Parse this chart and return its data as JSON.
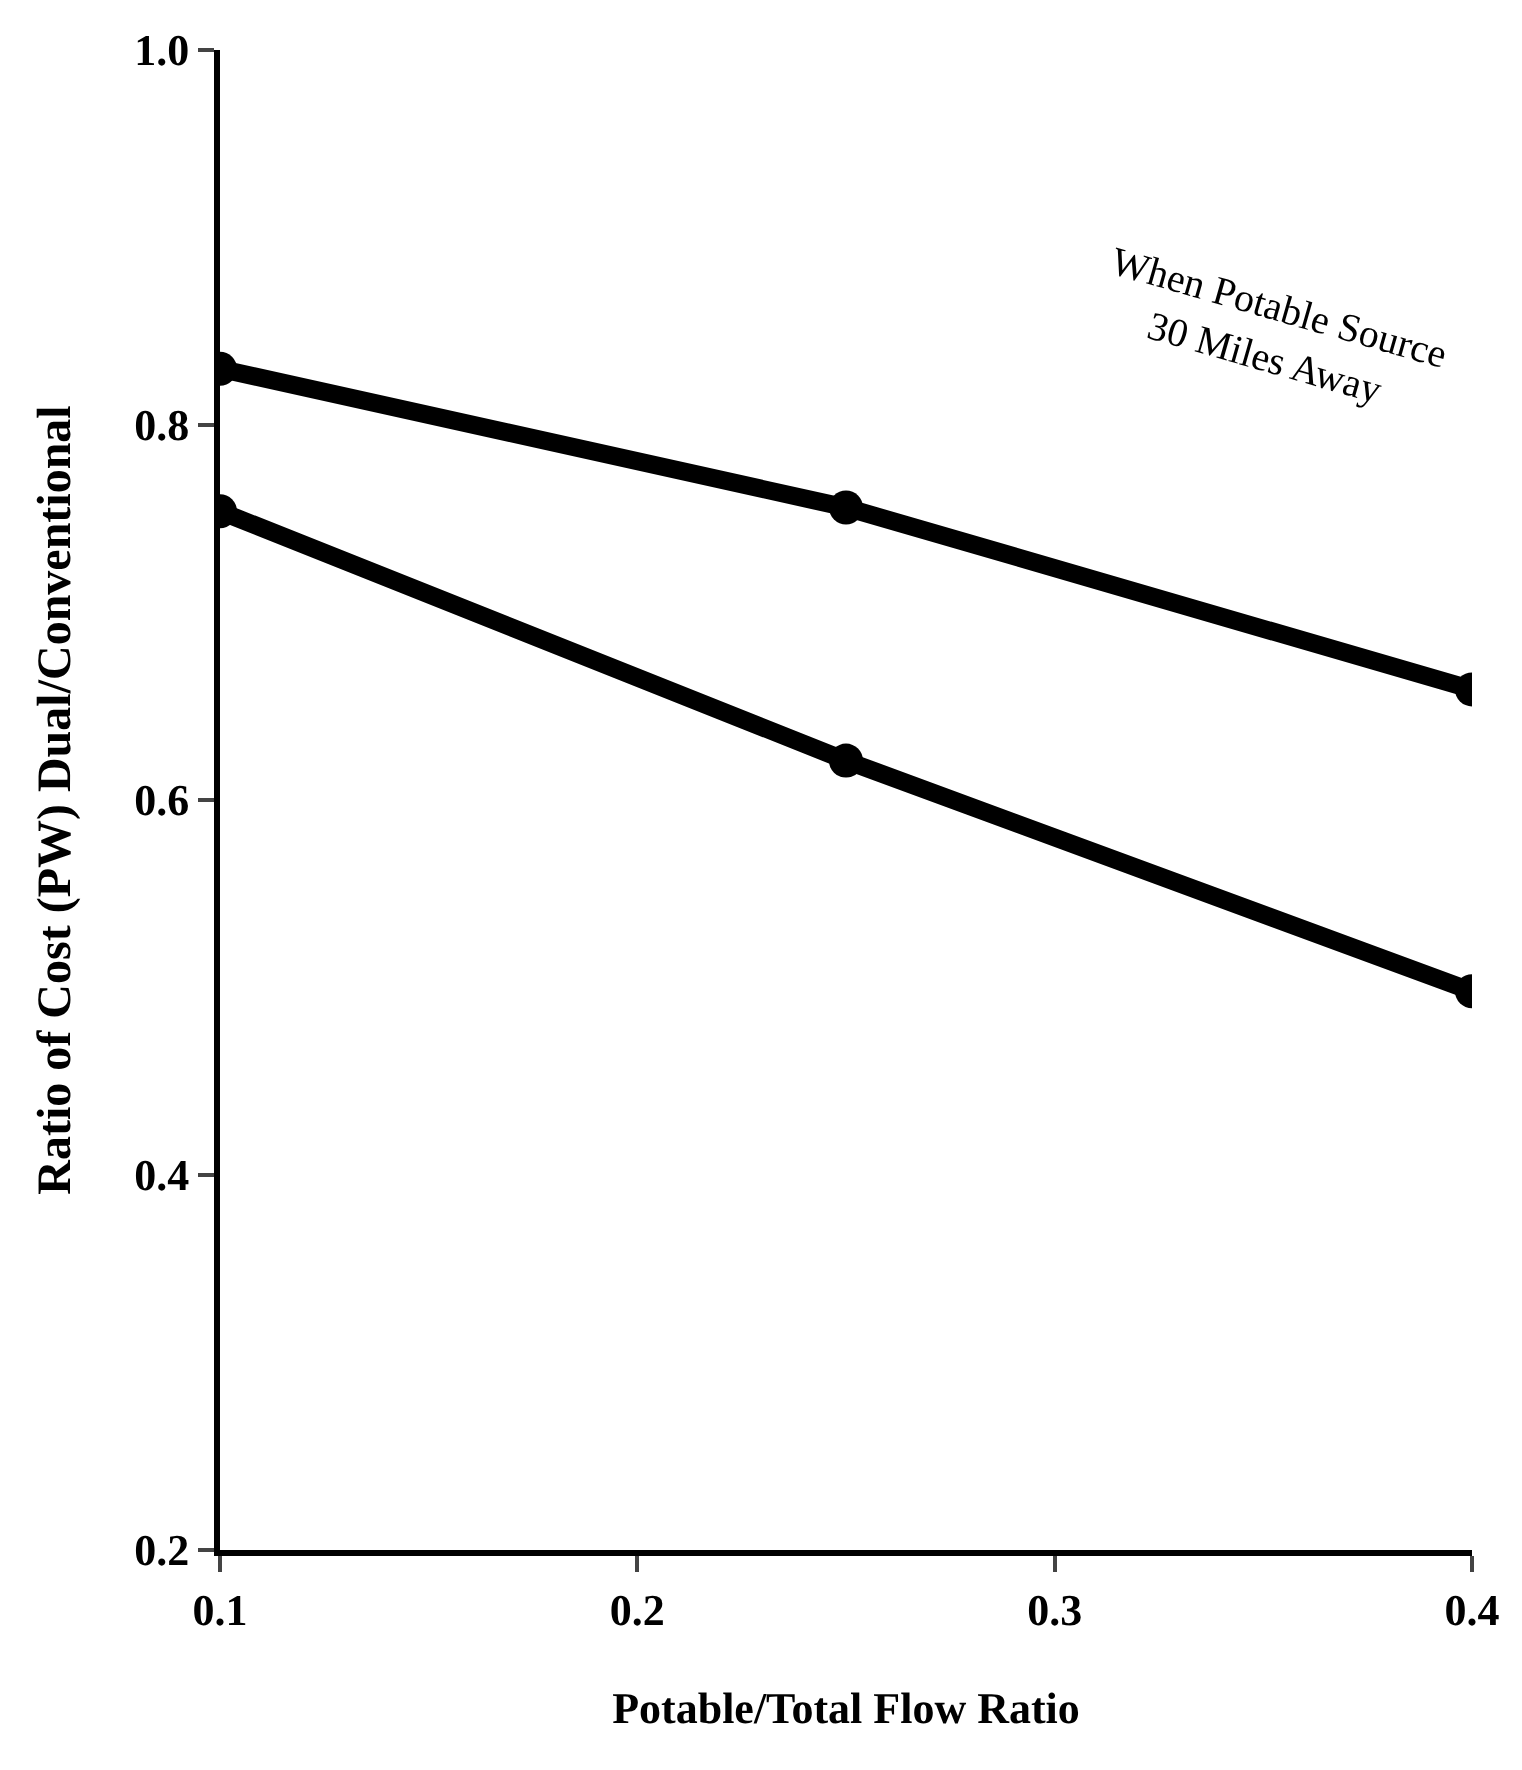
{
  "chart_data": {
    "type": "line",
    "xlabel": "Potable/Total Flow Ratio",
    "ylabel": "Ratio of Cost (PW) Dual/Conventional",
    "x": [
      0.1,
      0.25,
      0.4
    ],
    "series": [
      {
        "color": "#000000",
        "values": [
          0.83,
          0.756,
          0.659
        ]
      },
      {
        "color": "#000000",
        "values": [
          0.754,
          0.621,
          0.498
        ]
      }
    ],
    "xlim": [
      0.1,
      0.4
    ],
    "xticks": [
      0.1,
      0.2,
      0.3,
      0.4
    ],
    "ylim": [
      0.2,
      1.0
    ],
    "yticks": [
      0.2,
      0.4,
      0.6,
      0.8,
      {
        "value": 1.0,
        "label": "1.0"
      }
    ],
    "annotations": [
      "When Potable Source\n30 Miles Away"
    ],
    "marker": "circle",
    "line_style": "solid"
  }
}
